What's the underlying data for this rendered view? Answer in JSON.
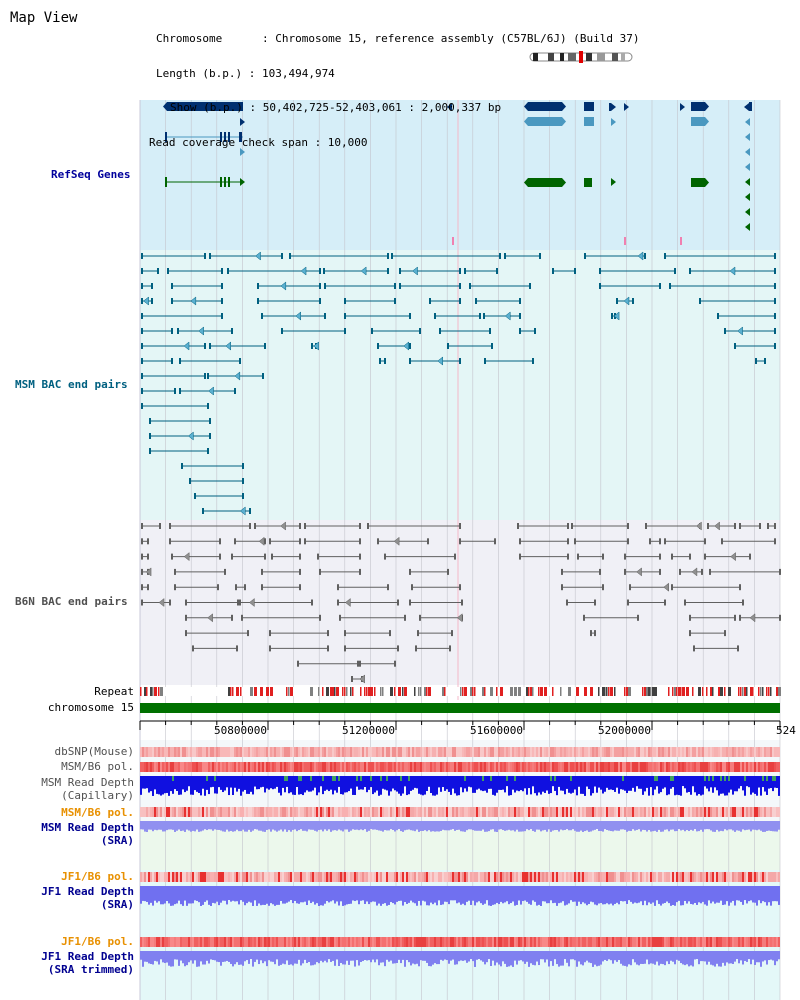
{
  "title": "Map View",
  "header": {
    "lines": [
      "Chromosome      : Chromosome 15, reference assembly (C57BL/6J) (Build 37)",
      "Length (b.p.) : 103,494,974",
      "Show (b.p.) : 50,402,725-52,403,061 : 2,000,337 bp",
      "Read coverage check span : 10,000"
    ]
  },
  "tracks": {
    "refseq": "RefSeq Genes",
    "msm_bac": "MSM BAC end pairs",
    "b6n_bac": "B6N BAC end pairs",
    "repeat": "Repeat",
    "chrom": "chromosome 15",
    "dbsnp": "dbSNP(Mouse)",
    "msm_b6_pol": "MSM/B6 pol.",
    "msm_depth_cap_1": "MSM Read Depth",
    "msm_depth_cap_2": "(Capillary)",
    "msm_b6_pol_2": "MSM/B6 pol.",
    "msm_depth_sra_1": "MSM Read Depth",
    "msm_depth_sra_2": "(SRA)",
    "jf1_b6_pol": "JF1/B6 pol.",
    "jf1_depth_sra_1": "JF1 Read Depth",
    "jf1_depth_sra_2": "(SRA)",
    "jf1_b6_pol_2": "JF1/B6 pol.",
    "jf1_depth_trim_1": "JF1 Read Depth",
    "jf1_depth_trim_2": "(SRA trimmed)"
  },
  "axis": {
    "ticks": [
      "50800000",
      "51200000",
      "51600000",
      "52000000",
      "524"
    ]
  },
  "colors": {
    "refseq_bg": "#d6eef8",
    "msm_bg": "#e4f6f6",
    "b6n_bg": "#f0f0f6",
    "refseq_label": "#00009c",
    "msm_label": "#006080",
    "b6n_label": "#505050",
    "orange": "#e89000",
    "navy": "#000090",
    "gene_dark": "#003070",
    "gene_light": "#4a98c0",
    "gene_green": "#006400",
    "msm_line": "#006080",
    "b6n_line": "#606060",
    "chrom_green": "#007000"
  }
}
